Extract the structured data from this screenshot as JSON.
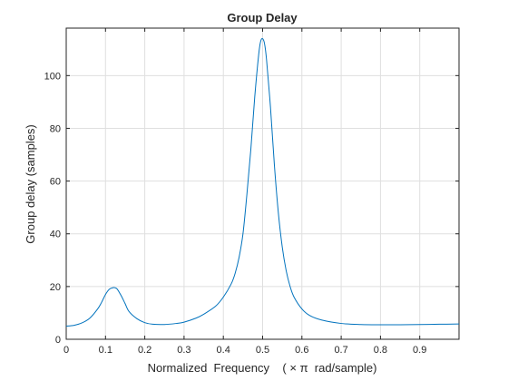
{
  "chart_data": {
    "type": "line",
    "title": "Group Delay",
    "xlabel": "Normalized  Frequency    ( × π  rad/sample)",
    "ylabel": "Group delay (samples)",
    "xlim": [
      0,
      1
    ],
    "ylim": [
      0,
      118
    ],
    "grid": true,
    "legend": "none",
    "x_ticks": [
      0,
      0.1,
      0.2,
      0.3,
      0.4,
      0.5,
      0.6,
      0.7,
      0.8,
      0.9
    ],
    "x_tick_labels": [
      "0",
      "0.1",
      "0.2",
      "0.3",
      "0.4",
      "0.5",
      "0.6",
      "0.7",
      "0.8",
      "0.9"
    ],
    "y_ticks": [
      0,
      20,
      40,
      60,
      80,
      100
    ],
    "y_tick_labels": [
      "0",
      "20",
      "40",
      "60",
      "80",
      "100"
    ],
    "line_color": "#0072BD",
    "series": [
      {
        "x": [
          0.0,
          0.02,
          0.04,
          0.06,
          0.08,
          0.09,
          0.1,
          0.11,
          0.12,
          0.125,
          0.13,
          0.14,
          0.15,
          0.16,
          0.18,
          0.2,
          0.22,
          0.25,
          0.28,
          0.3,
          0.33,
          0.35,
          0.38,
          0.4,
          0.42,
          0.43,
          0.44,
          0.45,
          0.46,
          0.47,
          0.48,
          0.49,
          0.495,
          0.5,
          0.505,
          0.51,
          0.52,
          0.53,
          0.54,
          0.55,
          0.56,
          0.57,
          0.58,
          0.6,
          0.62,
          0.65,
          0.7,
          0.75,
          0.8,
          0.85,
          0.9,
          0.95,
          1.0
        ],
        "values": [
          5.0,
          5.3,
          6.2,
          8.0,
          11.5,
          14.0,
          17.0,
          19.0,
          19.6,
          19.5,
          19.0,
          16.5,
          13.5,
          10.5,
          7.8,
          6.3,
          5.7,
          5.6,
          6.0,
          6.5,
          8.0,
          9.5,
          12.5,
          16.0,
          21.0,
          25.0,
          31.0,
          40.0,
          55.0,
          72.0,
          92.0,
          108.0,
          113.0,
          114.0,
          112.0,
          106.0,
          88.0,
          66.0,
          48.0,
          35.0,
          26.0,
          20.0,
          16.0,
          11.5,
          9.0,
          7.3,
          6.0,
          5.6,
          5.5,
          5.5,
          5.6,
          5.7,
          5.8
        ]
      }
    ]
  }
}
